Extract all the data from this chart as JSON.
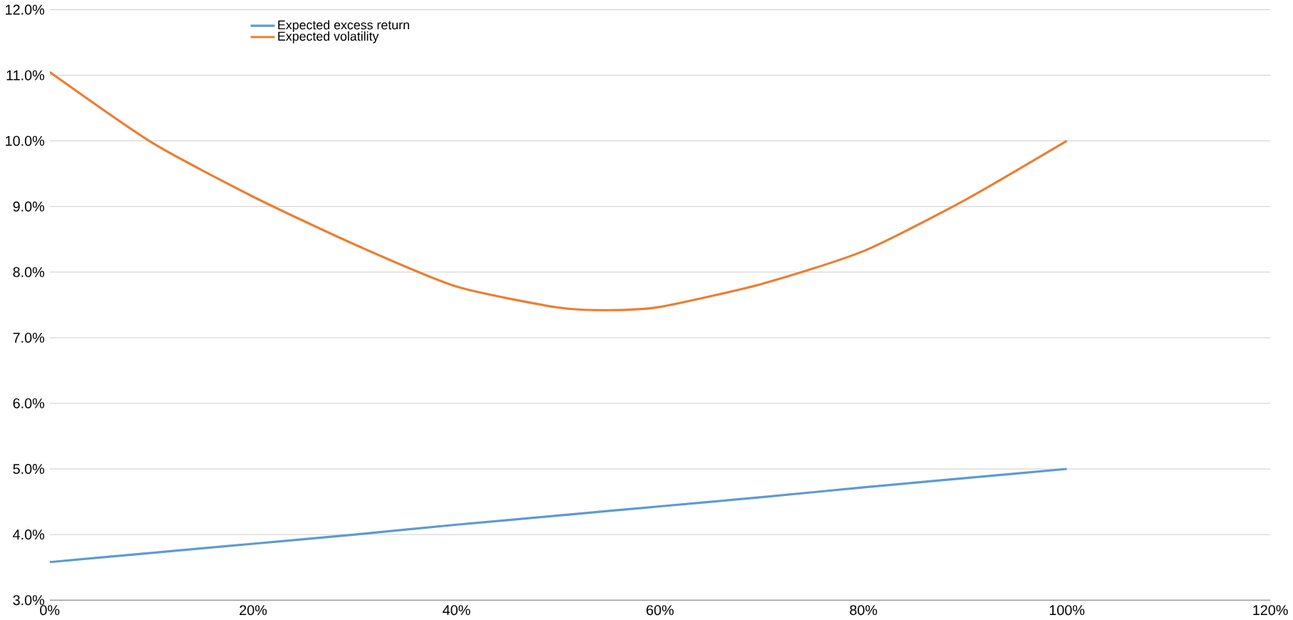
{
  "chart_data": {
    "type": "line",
    "x": [
      0,
      10,
      20,
      30,
      40,
      50,
      55,
      60,
      70,
      80,
      90,
      100
    ],
    "series": [
      {
        "name": "Expected excess return",
        "color": "#5b9bd5",
        "values": [
          3.58,
          3.72,
          3.86,
          4.0,
          4.15,
          4.29,
          4.36,
          4.43,
          4.57,
          4.72,
          4.86,
          5.0
        ]
      },
      {
        "name": "Expected volatility",
        "color": "#ed7d31",
        "values": [
          11.05,
          9.98,
          9.15,
          8.42,
          7.78,
          7.46,
          7.42,
          7.47,
          7.82,
          8.32,
          9.1,
          10.0
        ]
      }
    ],
    "xlim": [
      0,
      120
    ],
    "ylim": [
      3,
      12
    ],
    "xticks": [
      {
        "value": 0,
        "label": "0%"
      },
      {
        "value": 20,
        "label": "20%"
      },
      {
        "value": 40,
        "label": "40%"
      },
      {
        "value": 60,
        "label": "60%"
      },
      {
        "value": 80,
        "label": "80%"
      },
      {
        "value": 100,
        "label": "100%"
      },
      {
        "value": 120,
        "label": "120%"
      }
    ],
    "yticks": [
      {
        "value": 3,
        "label": "3.0%"
      },
      {
        "value": 4,
        "label": "4.0%"
      },
      {
        "value": 5,
        "label": "5.0%"
      },
      {
        "value": 6,
        "label": "6.0%"
      },
      {
        "value": 7,
        "label": "7.0%"
      },
      {
        "value": 8,
        "label": "8.0%"
      },
      {
        "value": 9,
        "label": "9.0%"
      },
      {
        "value": 10,
        "label": "10.0%"
      },
      {
        "value": 11,
        "label": "11.0%"
      },
      {
        "value": 12,
        "label": "12.0%"
      }
    ],
    "grid": "y",
    "legend": "top",
    "marker": "none",
    "line_style": "solid"
  }
}
